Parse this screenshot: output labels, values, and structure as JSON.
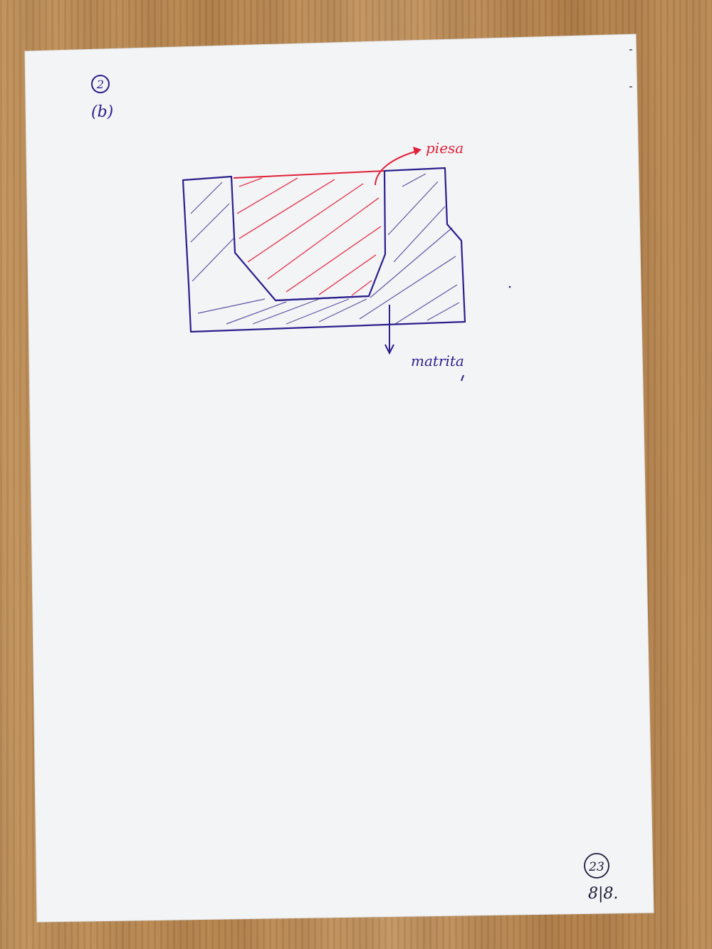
{
  "page": {
    "section_number": "2",
    "subpart": "(b)",
    "page_score": "23",
    "page_count": "8|8."
  },
  "diagram": {
    "part_label": "piesa",
    "die_label": "matrita",
    "colors": {
      "ink_blue": "#2a1f8c",
      "ink_red": "#e0203a",
      "paper": "#f4f5f7"
    }
  }
}
